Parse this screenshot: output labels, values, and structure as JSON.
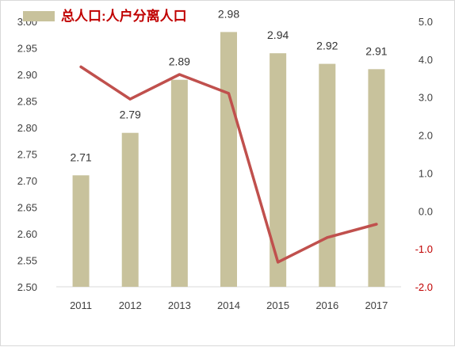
{
  "colors": {
    "bar": "#c8c29c",
    "line": "#c0504d",
    "axis_text": "#404040",
    "negative_tick": "#c00000"
  },
  "legend": {
    "label": "总人口:人户分离人口"
  },
  "chart_data": {
    "type": "bar",
    "categories": [
      "2011",
      "2012",
      "2013",
      "2014",
      "2015",
      "2016",
      "2017"
    ],
    "series": [
      {
        "type": "bar",
        "axis": "left",
        "values": [
          2.71,
          2.79,
          2.89,
          2.98,
          2.94,
          2.92,
          2.91
        ],
        "data_labels": [
          "2.71",
          "2.79",
          "2.89",
          "2.98",
          "2.94",
          "2.92",
          "2.91"
        ]
      },
      {
        "type": "line",
        "axis": "right",
        "values": [
          3.8,
          2.95,
          3.6,
          3.1,
          -1.35,
          -0.7,
          -0.35
        ]
      }
    ],
    "y_left": {
      "lim": [
        2.5,
        3.0
      ],
      "ticks": [
        "2.50",
        "2.55",
        "2.60",
        "2.65",
        "2.70",
        "2.75",
        "2.80",
        "2.85",
        "2.90",
        "2.95",
        "3.00"
      ]
    },
    "y_right": {
      "lim": [
        -2.0,
        5.0
      ],
      "ticks": [
        "-2.0",
        "-1.0",
        "0.0",
        "1.0",
        "2.0",
        "3.0",
        "4.0",
        "5.0"
      ]
    },
    "grid": false,
    "legend_position": "top-left"
  }
}
